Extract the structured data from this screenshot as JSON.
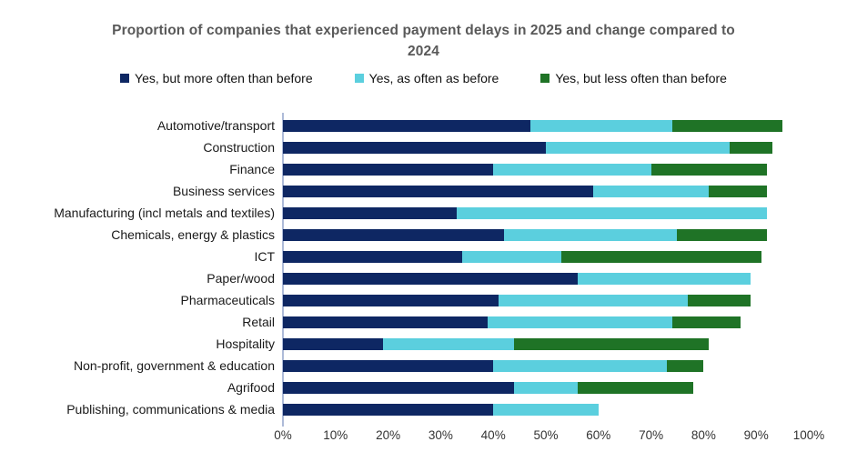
{
  "title": "Proportion of companies that experienced payment delays in 2025 and change compared to 2024",
  "colors": {
    "series_more": "#0E2763",
    "series_as_often": "#5BCFDE",
    "series_less": "#1F7326",
    "title_text": "#595959",
    "axis_line": "#AEBBD8",
    "tick_text": "#333333"
  },
  "chart_data": {
    "type": "bar",
    "orientation": "horizontal",
    "stacked": true,
    "grid": false,
    "legend_position": "top",
    "xlim": [
      0,
      100
    ],
    "x_ticks": [
      "0%",
      "10%",
      "20%",
      "30%",
      "40%",
      "50%",
      "60%",
      "70%",
      "80%",
      "90%",
      "100%"
    ],
    "categories": [
      "Automotive/transport",
      "Construction",
      "Finance",
      "Business services",
      "Manufacturing (incl metals and textiles)",
      "Chemicals, energy & plastics",
      "ICT",
      "Paper/wood",
      "Pharmaceuticals",
      "Retail",
      "Hospitality",
      "Non-profit, government & education",
      "Agrifood",
      "Publishing, communications & media"
    ],
    "series": [
      {
        "name": "Yes, but more often than before",
        "color": "#0E2763",
        "values": [
          47,
          50,
          40,
          59,
          33,
          42,
          34,
          56,
          41,
          39,
          19,
          40,
          44,
          40
        ]
      },
      {
        "name": "Yes, as often as before",
        "color": "#5BCFDE",
        "values": [
          27,
          35,
          30,
          22,
          59,
          33,
          19,
          33,
          36,
          35,
          25,
          33,
          12,
          20
        ]
      },
      {
        "name": "Yes, but less often than before",
        "color": "#1F7326",
        "values": [
          21,
          8,
          22,
          11,
          0,
          17,
          38,
          0,
          12,
          13,
          37,
          7,
          22,
          0
        ]
      }
    ]
  }
}
